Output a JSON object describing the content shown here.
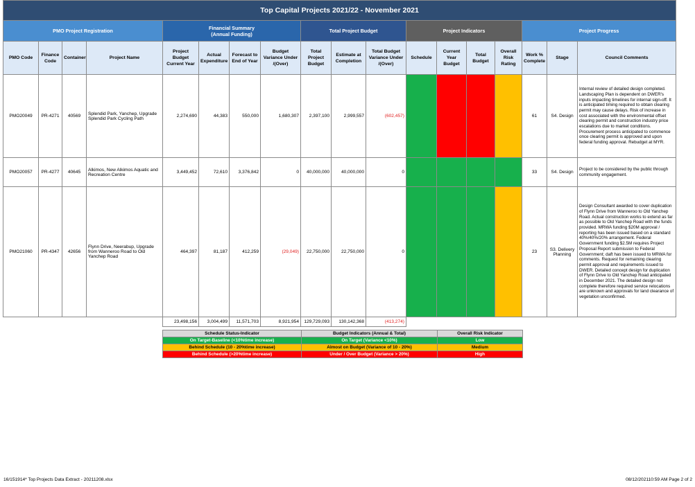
{
  "title": "Top Capital Projects 2021/22 - November 2021",
  "groups": {
    "pmo": "PMO Project Registration",
    "financial": "Financial Summary\n(Annual Funding)",
    "total_budget": "Total Project Budget",
    "indicators": "Project Indicators",
    "progress": "Project Progress"
  },
  "columns": {
    "pmo_code": "PMO Code",
    "finance_code": "Finance Code",
    "container": "Container",
    "project_name": "Project Name",
    "project_budget": "Project Budget Current Year",
    "actual_expenditure": "Actual Expenditure",
    "forecast": "Forecast to End of Year",
    "budget_variance": "Budget Variance Under /(Over)",
    "total_project_budget": "Total Project Budget",
    "estimate": "Estimate at Completion",
    "total_variance": "Total Budget Variance Under /(Over)",
    "schedule": "Schedule",
    "current_year_budget": "Current Year Budget",
    "total_budget": "Total Budget",
    "overall_risk": "Overall Risk Rating",
    "work_pct": "Work % Complete",
    "stage": "Stage",
    "council_comments": "Council Comments"
  },
  "rows": [
    {
      "pmo_code": "PMO20049",
      "finance_code": "PR-4271",
      "container": "40569",
      "project_name": "Splendid Park, Yanchep, Upgrade Splendid Park Cycling Path",
      "project_budget": "2,274,690",
      "actual_expenditure": "44,383",
      "forecast": "550,000",
      "budget_variance": "1,680,307",
      "total_project_budget": "2,397,100",
      "estimate": "2,999,557",
      "total_variance": "(602,457)",
      "schedule": "green",
      "current_year_budget": "red",
      "total_budget": "red",
      "overall_risk": "amber",
      "work_pct": "61",
      "stage": "S4. Design",
      "comments": "Internal review of detailed design completed. Landscaping Plan is dependent on DWER's inputs impacting timelines for internal sign-off. It is anticipated timing required to obtain clearing permit may cause delays.  Risk of increase in cost associated with the environmental offset clearing permit and construction industry price escalations due to market conditions. Procurement process anticipated to commence once clearing permit is approved and upon federal funding approval.  Rebudget at MYR."
    },
    {
      "pmo_code": "PMO20057",
      "finance_code": "PR-4277",
      "container": "40645",
      "project_name": "Alkimos, New Alkimos Aquatic and Recreation Centre",
      "project_budget": "3,449,452",
      "actual_expenditure": "72,610",
      "forecast": "3,376,842",
      "budget_variance": "0",
      "total_project_budget": "40,000,000",
      "estimate": "40,000,000",
      "total_variance": "0",
      "schedule": "green",
      "current_year_budget": "green",
      "total_budget": "green",
      "overall_risk": "green",
      "work_pct": "33",
      "stage": "S4. Design",
      "comments": "Project to be considered by the public through community engagement."
    },
    {
      "pmo_code": "PMO21060",
      "finance_code": "PR-4347",
      "container": "42656",
      "project_name": "Flynn Drive, Neerabup, Upgrade from Wanneroo Road to Old Yanchep Road",
      "project_budget": "464,397",
      "actual_expenditure": "81,187",
      "forecast": "412,259",
      "budget_variance": "(29,049)",
      "total_project_budget": "22,750,000",
      "estimate": "22,750,000",
      "total_variance": "0",
      "schedule": "green",
      "current_year_budget": "green",
      "total_budget": "green",
      "overall_risk": "amber",
      "work_pct": "23",
      "stage": "S3. Delivery Planning",
      "comments": "Design Consultant awarded to cover duplication of Flynn Drive from Wanneroo to Old Yanchep Road. Actual construction works to extend as far as possible to Old Yanchep Road with the funds provided. MRWA funding $20M approval / reporting has been issued based on a standard 40%/40%/20% arrangement. Federal Government funding $2.5M requires Project Proposal Report submission to Federal Government; daft has been issued to MRWA for comments.  Request for remaining clearing permit approval and requirements issued to DWER.  Detailed concept design for duplication of Flynn Drive to Old Yanchep Road anticipated in December 2021.  The detailed design not complete therefore required service relocations are unknown and approvals for land clearance of vegetation unconfirmed."
    }
  ],
  "totals": {
    "project_budget": "23,498,156",
    "actual_expenditure": "3,004,499",
    "forecast": "11,571,703",
    "budget_variance": "8,921,954",
    "total_project_budget": "129,729,093",
    "estimate": "130,142,368",
    "total_variance": "(413,274)"
  },
  "legend": {
    "headers": [
      "Schedule Status-Indicator",
      "Budget Indicators (Annual & Total)",
      "Overall Risk Indicator"
    ],
    "rows": [
      [
        "On Target-Baseline (<10%time increase)",
        "On Target (Variance <10%)",
        "Low"
      ],
      [
        "Behind Schedule (10 - 20%time increase)",
        "Almost on Budget (Variance of 10 - 20%)",
        "Medium"
      ],
      [
        "Behind Schedule (>20%time increase)",
        "Under / Over Budget (Variance > 20%)",
        "High"
      ]
    ]
  },
  "colors": {
    "green": "#17b04c",
    "amber": "#ffc000",
    "red": "#ff0000",
    "title_bg": "#2f4d73"
  },
  "footer": {
    "left": "16/151914*  Top Projects Data Extract - 20211208.xlsx",
    "right": "08/12/202110:59 AM   Page 2 of 2"
  }
}
